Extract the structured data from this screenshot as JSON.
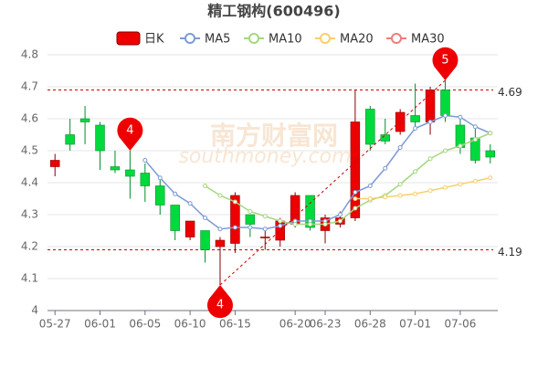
{
  "chart_data": {
    "type": "candlestick",
    "title": "精工钢构(600496)",
    "categories": [
      "05-27",
      null,
      null,
      "06-01",
      null,
      null,
      "06-05",
      null,
      null,
      "06-10",
      null,
      null,
      "06-15",
      null,
      null,
      null,
      "06-20",
      null,
      "06-23",
      null,
      null,
      "06-28",
      null,
      null,
      "07-01",
      null,
      null,
      "07-06",
      null,
      null
    ],
    "candles": {
      "name": "日K",
      "up_color": "#ec0000",
      "down_color": "#00da3c",
      "open": [
        4.45,
        4.55,
        4.6,
        4.58,
        4.45,
        4.44,
        4.43,
        4.39,
        4.33,
        4.23,
        4.25,
        4.2,
        4.21,
        4.3,
        4.23,
        4.22,
        4.27,
        4.36,
        4.25,
        4.27,
        4.29,
        4.63,
        4.55,
        4.56,
        4.61,
        4.59,
        4.69,
        4.58,
        4.54,
        4.5
      ],
      "close": [
        4.47,
        4.52,
        4.59,
        4.5,
        4.44,
        4.42,
        4.39,
        4.33,
        4.25,
        4.28,
        4.19,
        4.22,
        4.36,
        4.27,
        4.23,
        4.28,
        4.36,
        4.26,
        4.29,
        4.29,
        4.59,
        4.52,
        4.53,
        4.62,
        4.59,
        4.69,
        4.61,
        4.51,
        4.47,
        4.48
      ],
      "high": [
        4.49,
        4.6,
        4.64,
        4.59,
        4.5,
        4.5,
        4.46,
        4.41,
        4.33,
        4.28,
        4.25,
        4.23,
        4.37,
        4.3,
        4.25,
        4.29,
        4.37,
        4.36,
        4.3,
        4.31,
        4.69,
        4.64,
        4.6,
        4.63,
        4.71,
        4.7,
        4.72,
        4.6,
        4.57,
        4.52
      ],
      "low": [
        4.42,
        4.5,
        4.52,
        4.44,
        4.43,
        4.35,
        4.34,
        4.3,
        4.22,
        4.22,
        4.15,
        4.08,
        4.18,
        4.23,
        4.19,
        4.2,
        4.26,
        4.25,
        4.21,
        4.26,
        4.28,
        4.5,
        4.52,
        4.55,
        4.57,
        4.55,
        4.59,
        4.49,
        4.46,
        4.46
      ]
    },
    "series": [
      {
        "name": "MA5",
        "color": "#7d9bd4",
        "values": [
          null,
          null,
          null,
          null,
          null,
          null,
          4.47,
          4.415,
          4.365,
          4.335,
          4.29,
          4.255,
          4.26,
          4.26,
          4.255,
          4.265,
          4.28,
          4.28,
          4.28,
          4.3,
          4.37,
          4.39,
          4.445,
          4.51,
          4.57,
          4.59,
          4.61,
          4.605,
          4.575,
          4.555
        ]
      },
      {
        "name": "MA10",
        "color": "#a5d77f",
        "values": [
          null,
          null,
          null,
          null,
          null,
          null,
          null,
          null,
          null,
          null,
          4.39,
          4.36,
          4.34,
          4.31,
          4.295,
          4.28,
          4.27,
          4.27,
          4.27,
          4.28,
          4.32,
          4.345,
          4.36,
          4.395,
          4.435,
          4.475,
          4.5,
          4.515,
          4.535,
          4.555
        ]
      },
      {
        "name": "MA20",
        "color": "#f8cf6b",
        "values": [
          null,
          null,
          null,
          null,
          null,
          null,
          null,
          null,
          null,
          null,
          null,
          null,
          null,
          null,
          null,
          null,
          null,
          null,
          null,
          null,
          4.35,
          4.35,
          4.355,
          4.36,
          4.365,
          4.375,
          4.385,
          4.395,
          4.405,
          4.415
        ]
      },
      {
        "name": "MA30",
        "color": "#f07c7c",
        "values": [
          null,
          null,
          null,
          null,
          null,
          null,
          null,
          null,
          null,
          null,
          null,
          null,
          null,
          null,
          null,
          null,
          null,
          null,
          null,
          null,
          null,
          null,
          null,
          null,
          null,
          null,
          null,
          null,
          null,
          null
        ]
      }
    ],
    "pins": [
      {
        "label": "4",
        "index": 5,
        "value": 4.5
      },
      {
        "label": "4",
        "index": 11,
        "value": 4.08
      },
      {
        "label": "5",
        "index": 26,
        "value": 4.72
      }
    ],
    "reference_lines": [
      4.69,
      4.19
    ],
    "watermark": "南方财富网",
    "watermark_sub": "southmoney.com",
    "ylim": [
      4,
      4.8
    ],
    "yticks": [
      4,
      4.1,
      4.2,
      4.3,
      4.4,
      4.5,
      4.6,
      4.7,
      4.8
    ],
    "grid": true
  }
}
